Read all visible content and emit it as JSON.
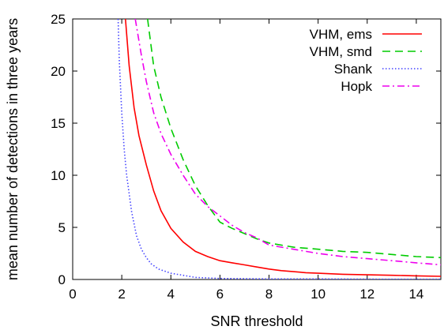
{
  "chart_data": {
    "type": "line",
    "title": "",
    "xlabel": "SNR threshold",
    "ylabel": "mean number of detections in three years",
    "xlim": [
      0,
      15
    ],
    "ylim": [
      0,
      25
    ],
    "xticks": [
      0,
      2,
      4,
      6,
      8,
      10,
      12,
      14
    ],
    "yticks": [
      0,
      5,
      10,
      15,
      20,
      25
    ],
    "grid": false,
    "legend_position": "top-right",
    "series": [
      {
        "name": "VHM, ems",
        "color": "#ff0000",
        "dash": "solid",
        "x": [
          2.15,
          2.3,
          2.5,
          2.7,
          3.0,
          3.3,
          3.6,
          4.0,
          4.5,
          5.0,
          5.5,
          6.0,
          6.5,
          7.0,
          7.5,
          8.0,
          8.5,
          9.0,
          9.5,
          10,
          11,
          12,
          13,
          14,
          15
        ],
        "y": [
          25,
          20.5,
          16.5,
          13.8,
          11.0,
          8.5,
          6.6,
          4.9,
          3.6,
          2.7,
          2.2,
          1.8,
          1.6,
          1.4,
          1.2,
          1.0,
          0.85,
          0.75,
          0.65,
          0.6,
          0.5,
          0.45,
          0.4,
          0.35,
          0.3
        ]
      },
      {
        "name": "VHM, smd",
        "color": "#00cc00",
        "dash": "dashed",
        "x": [
          3.05,
          3.3,
          3.6,
          4.0,
          4.5,
          5.0,
          5.5,
          6.0,
          6.5,
          7.0,
          7.5,
          8.0,
          9.0,
          10,
          11,
          12,
          13,
          14,
          15
        ],
        "y": [
          25,
          20.5,
          17.5,
          14.5,
          11.5,
          9.0,
          7.1,
          5.5,
          4.9,
          4.4,
          3.9,
          3.5,
          3.1,
          2.9,
          2.7,
          2.6,
          2.4,
          2.2,
          2.1
        ]
      },
      {
        "name": "Shank",
        "color": "#4444ff",
        "dash": "dotted",
        "x": [
          1.85,
          1.9,
          2.0,
          2.1,
          2.2,
          2.4,
          2.6,
          2.8,
          3.0,
          3.2,
          3.5,
          4.0,
          4.5,
          5.0,
          6.0,
          8.0,
          10,
          12,
          15
        ],
        "y": [
          25,
          21,
          16,
          12.5,
          10,
          6.5,
          4.2,
          2.9,
          2.1,
          1.5,
          1.0,
          0.6,
          0.4,
          0.2,
          0.1,
          0.05,
          0.05,
          0.03,
          0.02
        ]
      },
      {
        "name": "Hopk",
        "color": "#ee00ee",
        "dash": "dash-dot",
        "x": [
          2.55,
          2.8,
          3.0,
          3.3,
          3.6,
          4.0,
          4.5,
          5.0,
          5.5,
          6.0,
          6.5,
          7.0,
          7.5,
          8.0,
          9.0,
          10,
          11,
          12,
          13,
          14,
          15
        ],
        "y": [
          25,
          21.5,
          19.0,
          16.0,
          14.0,
          12.0,
          10.0,
          8.2,
          7.0,
          6.1,
          5.2,
          4.5,
          4.0,
          3.3,
          2.9,
          2.5,
          2.2,
          2.0,
          1.8,
          1.6,
          1.4
        ]
      }
    ]
  }
}
